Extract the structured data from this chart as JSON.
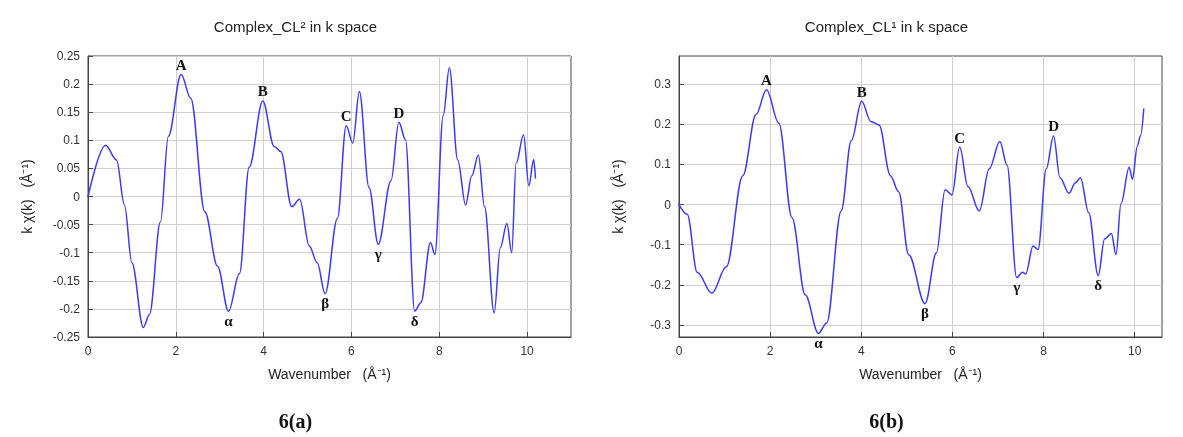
{
  "chart_data": [
    {
      "type": "line",
      "title": "Complex_CL² in k space",
      "xlabel": "Wavenumber   (Å⁻¹)",
      "ylabel": "k χ(k)   (Å⁻¹)",
      "x": [
        0,
        0.4,
        0.65,
        0.83,
        1.0,
        1.26,
        1.4,
        1.65,
        1.83,
        2.12,
        2.34,
        2.66,
        2.95,
        3.2,
        3.45,
        3.67,
        3.98,
        4.24,
        4.39,
        4.64,
        4.82,
        5.04,
        5.22,
        5.4,
        5.68,
        5.88,
        6.03,
        6.18,
        6.4,
        6.61,
        6.9,
        7.08,
        7.23,
        7.44,
        7.58,
        7.8,
        7.9,
        8.09,
        8.23,
        8.42,
        8.6,
        8.74,
        8.89,
        9.03,
        9.25,
        9.39,
        9.54,
        9.65,
        9.75,
        9.92,
        10.04,
        10.15,
        10.19
      ],
      "series": [
        {
          "color": "#3a3aff",
          "values": [
            0,
            0.091,
            0.065,
            -0.015,
            -0.118,
            -0.233,
            -0.21,
            -0.045,
            0.107,
            0.217,
            0.175,
            -0.027,
            -0.124,
            -0.204,
            -0.137,
            0.052,
            0.17,
            0.089,
            0.08,
            -0.018,
            -0.005,
            -0.088,
            -0.118,
            -0.173,
            -0.039,
            0.126,
            0.095,
            0.187,
            0.016,
            -0.085,
            0.028,
            0.132,
            0.101,
            -0.204,
            -0.189,
            -0.082,
            -0.103,
            0.144,
            0.229,
            0.065,
            -0.015,
            0.037,
            0.074,
            -0.018,
            -0.207,
            -0.091,
            -0.048,
            -0.1,
            0.059,
            0.11,
            0.019,
            0.066,
            0.033
          ]
        }
      ],
      "xlim": [
        0,
        11
      ],
      "xticks": [
        0,
        2,
        4,
        6,
        8,
        10
      ],
      "ylim": [
        -0.25,
        0.25
      ],
      "yticks": [
        -0.25,
        -0.2,
        -0.15,
        -0.1,
        -0.05,
        0,
        0.05,
        0.1,
        0.15,
        0.2,
        0.25
      ],
      "grid": true,
      "marker": "none",
      "line_style": "solid",
      "annotations": [
        {
          "text": "A",
          "x": 2.12,
          "y": 0.217
        },
        {
          "text": "B",
          "x": 3.98,
          "y": 0.17
        },
        {
          "text": "C",
          "x": 5.88,
          "y": 0.126
        },
        {
          "text": "D",
          "x": 7.08,
          "y": 0.132
        },
        {
          "text": "α",
          "x": 3.2,
          "y": -0.204
        },
        {
          "text": "β",
          "x": 5.4,
          "y": -0.173
        },
        {
          "text": "γ",
          "x": 6.61,
          "y": -0.085
        },
        {
          "text": "δ",
          "x": 7.44,
          "y": -0.204
        },
        "6(a)"
      ]
    },
    {
      "type": "line",
      "title": "Complex_CL¹ in k space",
      "xlabel": "Wavenumber   (Å⁻¹)",
      "ylabel": "k χ(k)   (Å⁻¹)",
      "x": [
        0,
        0.18,
        0.4,
        0.72,
        1.04,
        1.4,
        1.69,
        1.92,
        2.19,
        2.48,
        2.77,
        3.06,
        3.24,
        3.56,
        3.78,
        4.01,
        4.21,
        4.39,
        4.64,
        4.82,
        5.04,
        5.4,
        5.65,
        5.84,
        5.99,
        6.16,
        6.34,
        6.59,
        6.81,
        7.04,
        7.2,
        7.41,
        7.54,
        7.61,
        7.77,
        7.88,
        8.06,
        8.22,
        8.36,
        8.56,
        8.7,
        8.81,
        8.99,
        9.2,
        9.34,
        9.49,
        9.59,
        9.7,
        9.88,
        9.95,
        10.06,
        10.13,
        10.2
      ],
      "series": [
        {
          "color": "#3a3aff",
          "values": [
            0,
            -0.024,
            -0.169,
            -0.221,
            -0.155,
            0.072,
            0.224,
            0.286,
            0.203,
            -0.033,
            -0.225,
            -0.321,
            -0.295,
            -0.016,
            0.159,
            0.257,
            0.207,
            0.198,
            0.072,
            0.032,
            -0.125,
            -0.247,
            -0.12,
            0.037,
            0.024,
            0.143,
            0.045,
            -0.016,
            0.089,
            0.157,
            0.098,
            -0.182,
            -0.169,
            -0.173,
            -0.103,
            -0.112,
            0.089,
            0.171,
            0.067,
            0.028,
            0.054,
            0.067,
            -0.02,
            -0.177,
            -0.086,
            -0.072,
            -0.125,
            0.002,
            0.093,
            0.063,
            0.146,
            0.172,
            0.238
          ]
        }
      ],
      "xlim": [
        0,
        10.6
      ],
      "xticks": [
        0,
        2,
        4,
        6,
        8,
        10
      ],
      "ylim": [
        -0.33,
        0.37
      ],
      "yticks": [
        -0.3,
        -0.2,
        -0.1,
        0,
        0.1,
        0.2,
        0.3
      ],
      "grid": true,
      "marker": "none",
      "line_style": "solid",
      "annotations": [
        {
          "text": "A",
          "x": 1.92,
          "y": 0.286
        },
        {
          "text": "B",
          "x": 4.01,
          "y": 0.257
        },
        {
          "text": "C",
          "x": 6.16,
          "y": 0.143
        },
        {
          "text": "D",
          "x": 8.22,
          "y": 0.171
        },
        {
          "text": "α",
          "x": 3.06,
          "y": -0.321
        },
        {
          "text": "β",
          "x": 5.4,
          "y": -0.247
        },
        {
          "text": "γ",
          "x": 7.41,
          "y": -0.182
        },
        {
          "text": "δ",
          "x": 9.2,
          "y": -0.177
        },
        "6(b)"
      ]
    }
  ]
}
